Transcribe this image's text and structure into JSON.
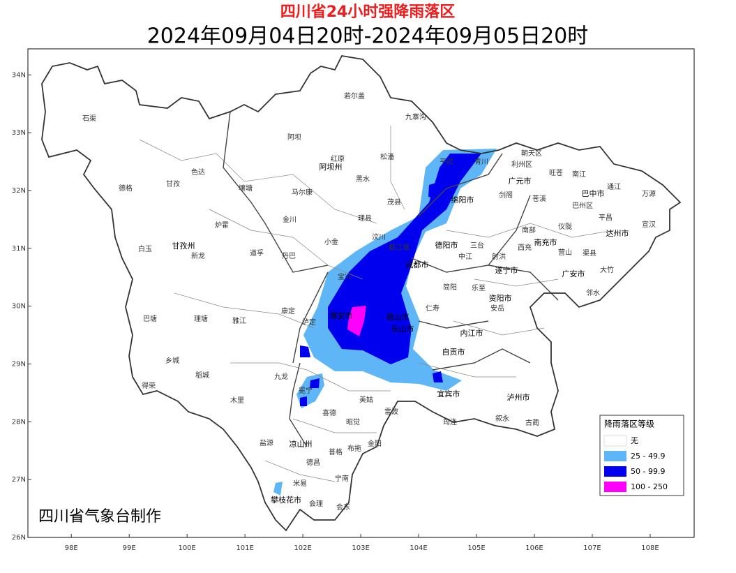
{
  "header": {
    "title": "四川省24小时强降雨落区",
    "subtitle": "2024年09月04日20时-2024年09月05日20时"
  },
  "map": {
    "xlim": [
      97.25,
      108.76
    ],
    "ylim": [
      26,
      34.45
    ],
    "lat_ticks": [
      {
        "value": 26,
        "label": "26N"
      },
      {
        "value": 27,
        "label": "27N"
      },
      {
        "value": 28,
        "label": "28N"
      },
      {
        "value": 29,
        "label": "29N"
      },
      {
        "value": 30,
        "label": "30N"
      },
      {
        "value": 31,
        "label": "31N"
      },
      {
        "value": 32,
        "label": "32N"
      },
      {
        "value": 33,
        "label": "33N"
      },
      {
        "value": 34,
        "label": "34N"
      }
    ],
    "lon_ticks": [
      {
        "value": 98,
        "label": "98E"
      },
      {
        "value": 99,
        "label": "99E"
      },
      {
        "value": 100,
        "label": "100E"
      },
      {
        "value": 101,
        "label": "101E"
      },
      {
        "value": 102,
        "label": "102E"
      },
      {
        "value": 103,
        "label": "103E"
      },
      {
        "value": 104,
        "label": "104E"
      },
      {
        "value": 105,
        "label": "105E"
      },
      {
        "value": 106,
        "label": "106E"
      },
      {
        "value": 107,
        "label": "107E"
      },
      {
        "value": 108,
        "label": "108E"
      }
    ],
    "places": [
      "石渠",
      "若尔盖",
      "九寨沟",
      "阿坝",
      "红原",
      "阿坝州",
      "松潘",
      "色达",
      "德格",
      "甘孜",
      "壤塘",
      "马尔康",
      "黑水",
      "平武",
      "青川",
      "朝天区",
      "利州区",
      "旺苍",
      "南江",
      "广元市",
      "通江",
      "巴中市",
      "万源",
      "茂县",
      "绵阳市",
      "剑阁",
      "苍溪",
      "巴州区",
      "金川",
      "理县",
      "炉霍",
      "平昌",
      "宣汉",
      "汶川",
      "小金",
      "白玉",
      "甘孜州",
      "新龙",
      "道孚",
      "丹巴",
      "都江堰",
      "德阳市",
      "三台",
      "南部",
      "仪陇",
      "达州市",
      "南充市",
      "西充",
      "中江",
      "射洪",
      "营山",
      "渠县",
      "成都市",
      "遂宁市",
      "大竹",
      "广安市",
      "宝兴",
      "简阳",
      "乐至",
      "邻水",
      "安岳",
      "资阳市",
      "康定",
      "巴塘",
      "理塘",
      "雅江",
      "雅安市",
      "眉山市",
      "仁寿",
      "泸定",
      "内江市",
      "乐山市",
      "自贡市",
      "九龙",
      "乡城",
      "稻城",
      "得荣",
      "宜宾市",
      "泸州市",
      "木里",
      "冕宁",
      "喜德",
      "昭觉",
      "美姑",
      "雷波",
      "筠连",
      "叙永",
      "古蔺",
      "盐源",
      "凉山州",
      "普格",
      "布拖",
      "金阳",
      "德昌",
      "宁南",
      "米易",
      "会理",
      "会东",
      "攀枝花市"
    ]
  },
  "legend": {
    "title": "降雨落区等级",
    "items": [
      {
        "label": "无",
        "color": "#ffffff"
      },
      {
        "label": "25 - 49.9",
        "color": "#5eb6f6"
      },
      {
        "label": "50 - 99.9",
        "color": "#0000ee"
      },
      {
        "label": "100 - 250",
        "color": "#ff00ff"
      }
    ]
  },
  "credit": "四川省气象台制作"
}
